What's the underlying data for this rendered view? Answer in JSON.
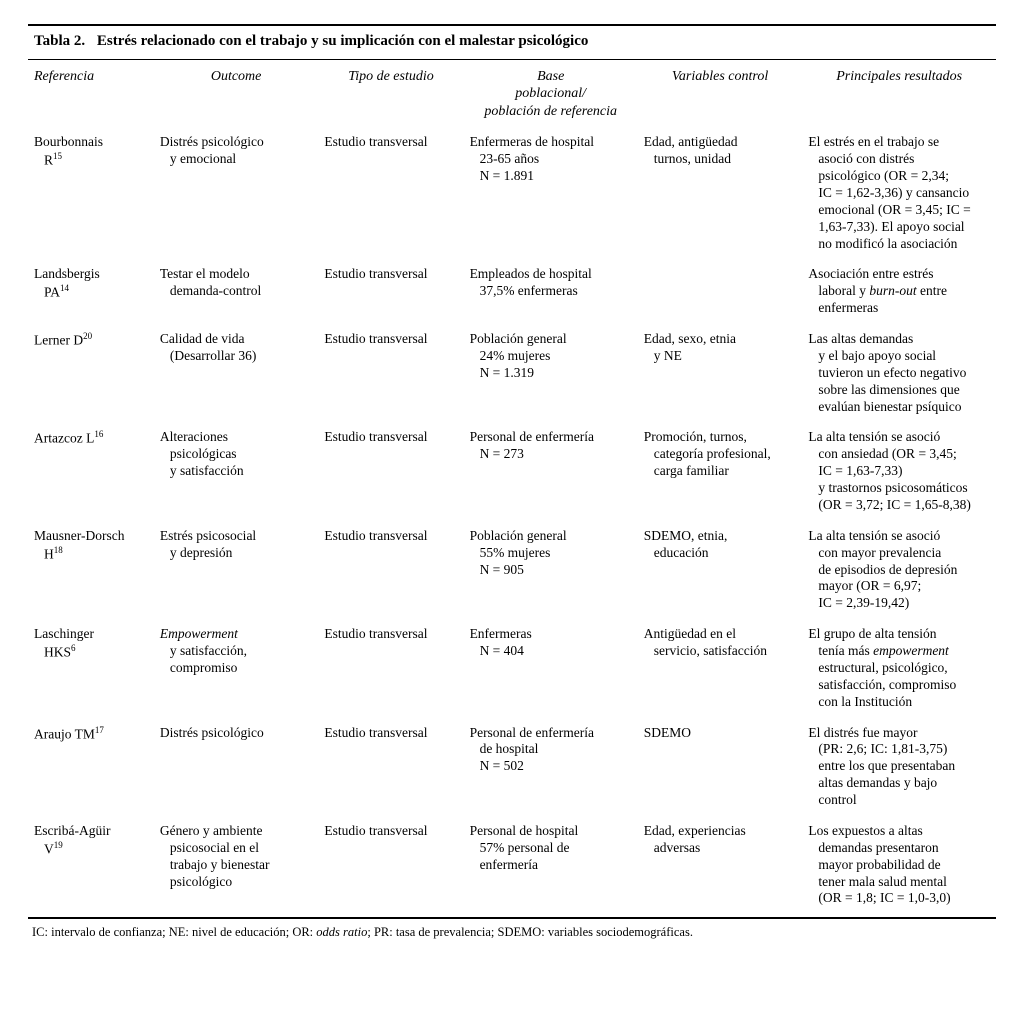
{
  "table": {
    "type": "table",
    "label": "Tabla 2.",
    "title": "Estrés relacionado con el trabajo y su implicación con el malestar psicológico",
    "columns": [
      "Referencia",
      "Outcome",
      "Tipo de estudio",
      "Base poblacional/ población de referencia",
      "Variables control",
      "Principales resultados"
    ],
    "col_widths_pct": [
      13,
      17,
      15,
      18,
      17,
      20
    ],
    "rows": [
      {
        "ref_name": "Bourbonnais R",
        "ref_sup": "15",
        "outcome": [
          "Distrés psicológico",
          "y emocional"
        ],
        "tipo": "Estudio transversal",
        "base": [
          "Enfermeras de hospital",
          "23-65 años",
          "N = 1.891"
        ],
        "vars": [
          "Edad, antigüedad",
          "turnos, unidad"
        ],
        "result": [
          "El estrés en el trabajo se",
          "asoció con distrés",
          "psicológico (OR = 2,34;",
          "IC = 1,62-3,36) y cansancio",
          "emocional (OR = 3,45; IC =",
          "1,63-7,33). El apoyo social",
          "no modificó la asociación"
        ]
      },
      {
        "ref_name": "Landsbergis PA",
        "ref_sup": "14",
        "outcome": [
          "Testar el modelo",
          "demanda-control"
        ],
        "tipo": "Estudio transversal",
        "base": [
          "Empleados de hospital",
          "37,5% enfermeras"
        ],
        "vars": [
          ""
        ],
        "result_html": [
          "Asociación entre estrés",
          "laboral y <em>burn-out</em> entre",
          "enfermeras"
        ]
      },
      {
        "ref_name": "Lerner D",
        "ref_sup": "20",
        "outcome": [
          "Calidad de vida",
          "(Desarrollar 36)"
        ],
        "tipo": "Estudio transversal",
        "base": [
          "Población general",
          "24% mujeres",
          "N = 1.319"
        ],
        "vars": [
          "Edad, sexo, etnia",
          "y NE"
        ],
        "result": [
          "Las altas demandas",
          "y el bajo apoyo social",
          "tuvieron un efecto negativo",
          "sobre las dimensiones que",
          "evalúan bienestar psíquico"
        ]
      },
      {
        "ref_name": "Artazcoz L",
        "ref_sup": "16",
        "outcome": [
          "Alteraciones",
          "psicológicas",
          "y satisfacción"
        ],
        "tipo": "Estudio transversal",
        "base": [
          "Personal de enfermería",
          "N = 273"
        ],
        "vars": [
          "Promoción, turnos,",
          "categoría profesional,",
          "carga familiar"
        ],
        "result": [
          "La alta tensión se asoció",
          "con ansiedad (OR = 3,45;",
          "IC = 1,63-7,33)",
          "y trastornos psicosomáticos",
          "(OR = 3,72; IC = 1,65-8,38)"
        ]
      },
      {
        "ref_name": "Mausner-Dorsch H",
        "ref_sup": "18",
        "outcome": [
          "Estrés psicosocial",
          "y depresión"
        ],
        "tipo": "Estudio transversal",
        "base": [
          "Población general",
          "55% mujeres",
          "N = 905"
        ],
        "vars": [
          "SDEMO, etnia,",
          "educación"
        ],
        "result": [
          "La alta tensión se asoció",
          "con mayor prevalencia",
          "de episodios de depresión",
          "mayor (OR = 6,97;",
          "IC = 2,39-19,42)"
        ]
      },
      {
        "ref_name": "Laschinger HKS",
        "ref_sup": "6",
        "outcome_html": [
          "<em>Empowerment</em>",
          "y satisfacción,",
          "compromiso"
        ],
        "tipo": "Estudio transversal",
        "base": [
          "Enfermeras",
          "N = 404"
        ],
        "vars": [
          "Antigüedad en el",
          "servicio, satisfacción"
        ],
        "result_html": [
          "El grupo de alta tensión",
          "tenía más <em>empowerment</em>",
          "estructural, psicológico,",
          "satisfacción, compromiso",
          "con la Institución"
        ]
      },
      {
        "ref_name": "Araujo TM",
        "ref_sup": "17",
        "outcome": [
          "Distrés psicológico"
        ],
        "tipo": "Estudio transversal",
        "base": [
          "Personal de enfermería",
          "de hospital",
          "N = 502"
        ],
        "vars": [
          "SDEMO"
        ],
        "result": [
          "El distrés fue mayor",
          "(PR: 2,6; IC: 1,81-3,75)",
          "entre los que presentaban",
          "altas demandas y bajo",
          "control"
        ]
      },
      {
        "ref_name": "Escribá-Agüir V",
        "ref_sup": "19",
        "outcome": [
          "Género y ambiente",
          "psicosocial en el",
          "trabajo y bienestar",
          "psicológico"
        ],
        "tipo": "Estudio transversal",
        "base": [
          "Personal de hospital",
          "57% personal de",
          "enfermería"
        ],
        "vars": [
          "Edad, experiencias",
          "adversas"
        ],
        "result": [
          "Los expuestos a altas",
          "demandas presentaron",
          "mayor probabilidad de",
          "tener mala salud mental",
          "(OR = 1,8; IC = 1,0-3,0)"
        ]
      }
    ],
    "footnote_html": "IC: intervalo de confianza; NE: nivel de educación; OR: <em>odds ratio</em>; PR: tasa de prevalencia; SDEMO: variables sociodemográficas.",
    "style": {
      "background_color": "#ffffff",
      "text_color": "#000000",
      "rule_color": "#000000",
      "header_font_style": "italic",
      "body_font_family": "Garamond, Georgia, serif",
      "title_fontsize_pt": 11,
      "header_fontsize_pt": 10,
      "cell_fontsize_pt": 10,
      "footnote_fontsize_pt": 9
    }
  }
}
